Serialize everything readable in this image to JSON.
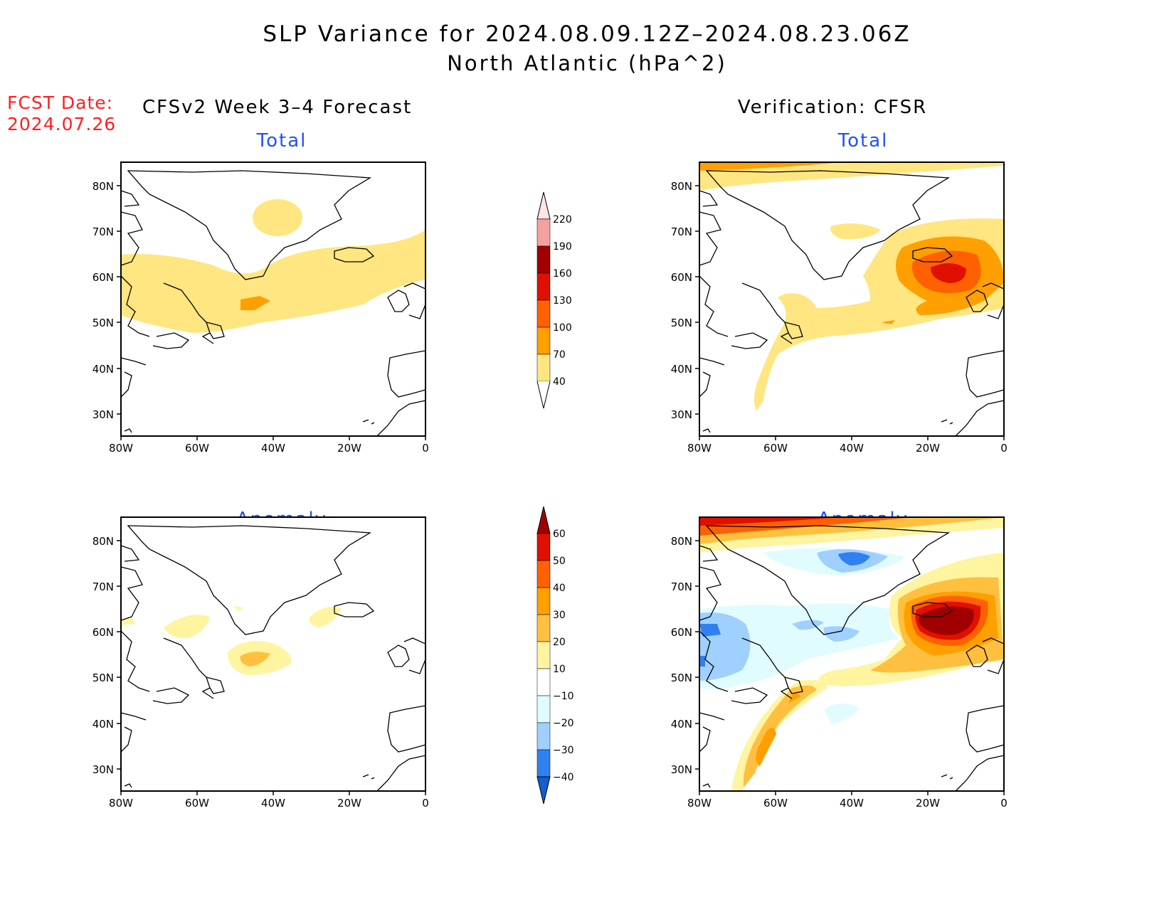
{
  "header": {
    "title_line1": "SLP Variance for 2024.08.09.12Z–2024.08.23.06Z",
    "title_line2": "North Atlantic (hPa^2)"
  },
  "fcst_date": {
    "label": "FCST Date:",
    "value": "2024.07.26"
  },
  "columns": {
    "left_heading": "CFSv2 Week 3–4 Forecast",
    "right_heading": "Verification: CFSR"
  },
  "panels": {
    "forecast_total": "Total",
    "verification_total": "Total",
    "forecast_anomaly": "Anomaly",
    "verification_anomaly": "Anomaly"
  },
  "axes": {
    "lat_labels": [
      "80N",
      "70N",
      "60N",
      "50N",
      "40N",
      "30N"
    ],
    "lon_labels": [
      "80W",
      "60W",
      "40W",
      "20W",
      "0"
    ]
  },
  "colorbar_total": {
    "ticks": [
      "220",
      "190",
      "160",
      "130",
      "100",
      "70",
      "40"
    ],
    "colors": [
      "#fde5e5",
      "#f4a0a0",
      "#a00000",
      "#e01000",
      "#ff6000",
      "#ffa000",
      "#ffe680"
    ]
  },
  "colorbar_anomaly": {
    "ticks": [
      "60",
      "50",
      "40",
      "30",
      "20",
      "10",
      "−10",
      "−20",
      "−30",
      "−40"
    ],
    "colors": [
      "#a00000",
      "#e01000",
      "#ff6000",
      "#ffa000",
      "#ffc040",
      "#fff4a0",
      "#ffffff",
      "#e0fcff",
      "#a0d0ff",
      "#3080f0",
      "#1060d0"
    ]
  }
}
